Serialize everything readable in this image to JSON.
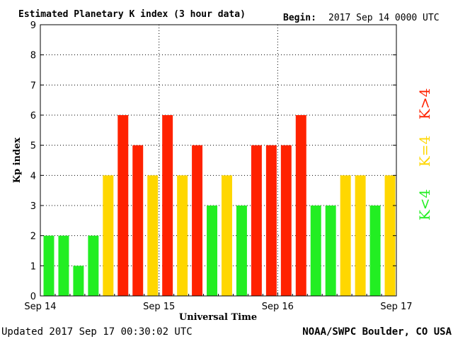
{
  "header": {
    "title": "Estimated Planetary K index (3 hour data)",
    "begin_label": "Begin:",
    "begin_value": "2017 Sep 14 0000 UTC"
  },
  "footer": {
    "updated": "Updated 2017 Sep 17 00:30:02 UTC",
    "source": "NOAA/SWPC Boulder, CO USA"
  },
  "colors": {
    "low": "#22ee22",
    "equal": "#ffd700",
    "high": "#ff2200"
  },
  "legend": [
    {
      "label": "K<4",
      "color": "#22ee22"
    },
    {
      "label": "K=4",
      "color": "#ffd700"
    },
    {
      "label": "K>4",
      "color": "#ff2200"
    }
  ],
  "chart_data": {
    "type": "bar",
    "title": "Estimated Planetary K index (3 hour data)",
    "xlabel": "Universal Time",
    "ylabel": "Kp index",
    "ylim": [
      0,
      9
    ],
    "yticks": [
      "0",
      "1",
      "2",
      "3",
      "4",
      "5",
      "6",
      "7",
      "8",
      "9"
    ],
    "xticks": [
      "Sep 14",
      "Sep 15",
      "Sep 16",
      "Sep 17"
    ],
    "grid": true,
    "values": [
      2,
      2,
      1,
      2,
      4,
      6,
      5,
      4,
      6,
      4,
      5,
      3,
      4,
      3,
      5,
      5,
      5,
      6,
      3,
      3,
      4,
      4,
      3,
      4
    ]
  }
}
